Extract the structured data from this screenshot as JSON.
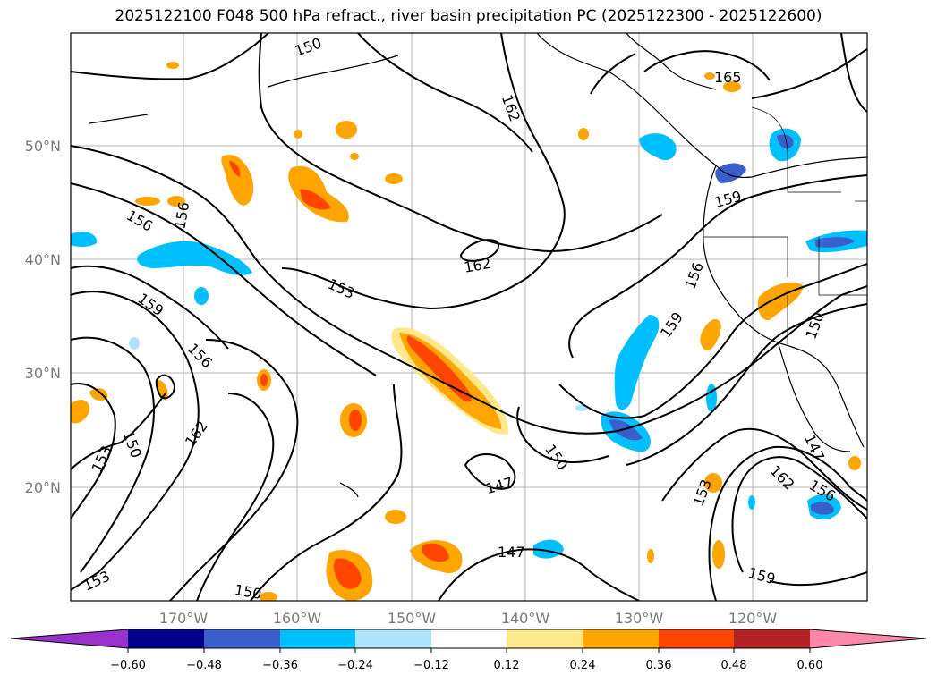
{
  "title": "2025122100 F048 500 hPa refract., river basin precipitation PC (2025122300 - 2025122600)",
  "map": {
    "lat_labels": [
      "50°N",
      "40°N",
      "30°N",
      "20°N"
    ],
    "lon_labels": [
      "170°W",
      "160°W",
      "150°W",
      "140°W",
      "130°W",
      "120°W"
    ],
    "grid": true,
    "contour_labels": [
      "150",
      "156",
      "156",
      "162",
      "165",
      "159",
      "156",
      "162",
      "153",
      "159",
      "156",
      "159",
      "150",
      "162",
      "153",
      "150",
      "147",
      "147",
      "150",
      "153",
      "162",
      "147",
      "156",
      "153",
      "150",
      "159"
    ]
  },
  "colorbar": {
    "ticks": [
      "−0.60",
      "−0.48",
      "−0.36",
      "−0.24",
      "−0.12",
      "0.12",
      "0.24",
      "0.36",
      "0.48",
      "0.60"
    ],
    "colors": [
      "#9932CC",
      "#00008B",
      "#3A5FCD",
      "#00BFFF",
      "#ADE4FA",
      "#FFFFFF",
      "#FFE88C",
      "#FFA500",
      "#FF4500",
      "#B22222",
      "#FF88AA"
    ]
  }
}
